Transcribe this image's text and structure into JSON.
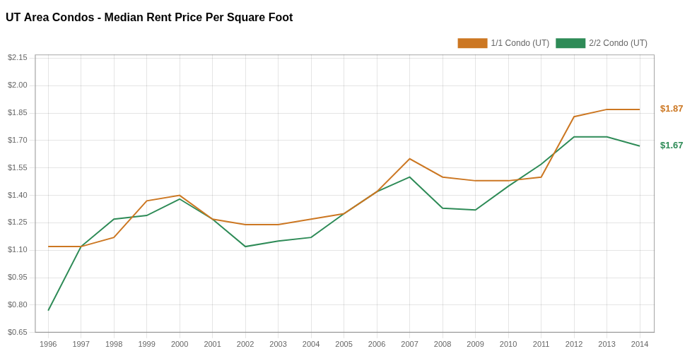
{
  "chart_data": {
    "type": "line",
    "title": "UT Area Condos - Median Rent Price Per Square Foot",
    "x": [
      1996,
      1997,
      1998,
      1999,
      2000,
      2001,
      2002,
      2003,
      2004,
      2005,
      2006,
      2007,
      2008,
      2009,
      2010,
      2011,
      2012,
      2013,
      2014
    ],
    "series": [
      {
        "name": "1/1 Condo (UT)",
        "color": "#cc7722",
        "values": [
          1.12,
          1.12,
          1.17,
          1.37,
          1.4,
          1.27,
          1.24,
          1.24,
          1.27,
          1.3,
          1.42,
          1.6,
          1.5,
          1.48,
          1.48,
          1.5,
          1.83,
          1.87,
          1.87
        ]
      },
      {
        "name": "2/2 Condo (UT)",
        "color": "#2e8b57",
        "values": [
          0.77,
          1.12,
          1.27,
          1.29,
          1.38,
          1.27,
          1.12,
          1.15,
          1.17,
          1.3,
          1.42,
          1.5,
          1.33,
          1.32,
          1.45,
          1.57,
          1.72,
          1.72,
          1.67
        ]
      }
    ],
    "xlim": [
      1995.6,
      2014.45
    ],
    "xticks": [
      1996,
      1997,
      1998,
      1999,
      2000,
      2001,
      2002,
      2003,
      2004,
      2005,
      2006,
      2007,
      2008,
      2009,
      2010,
      2011,
      2012,
      2013,
      2014
    ],
    "ylim": [
      0.65,
      2.17
    ],
    "yticks": [
      {
        "value": 0.65,
        "label": "$0.65"
      },
      {
        "value": 0.8,
        "label": "$0.80"
      },
      {
        "value": 0.95,
        "label": "$0.95"
      },
      {
        "value": 1.1,
        "label": "$1.10"
      },
      {
        "value": 1.25,
        "label": "$1.25"
      },
      {
        "value": 1.4,
        "label": "$1.40"
      },
      {
        "value": 1.55,
        "label": "$1.55"
      },
      {
        "value": 1.7,
        "label": "$1.70"
      },
      {
        "value": 1.85,
        "label": "$1.85"
      },
      {
        "value": 2.0,
        "label": "$2.00"
      },
      {
        "value": 2.15,
        "label": "$2.15"
      }
    ],
    "grid": true,
    "legend": "upper right",
    "annotations": [
      {
        "text": "$1.87",
        "y": 1.87,
        "color": "#cc7722"
      },
      {
        "text": "$1.67",
        "y": 1.67,
        "color": "#2e8b57"
      }
    ]
  }
}
